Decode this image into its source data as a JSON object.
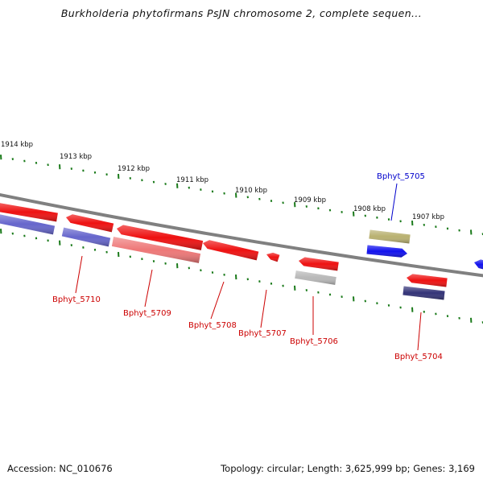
{
  "title": "Burkholderia phytofirmans PsJN chromosome 2, complete sequen...",
  "footer": {
    "accession": "Accession: NC_010676",
    "topology": "Topology: circular; Length: 3,625,999 bp; Genes: 3,169"
  },
  "kbp_labels": [
    "1914 kbp",
    "1913 kbp",
    "1912 kbp",
    "1911 kbp",
    "1910 kbp",
    "1909 kbp",
    "1908 kbp",
    "1907 kbp"
  ],
  "gene_labels": [
    {
      "name": "Bphyt_5710",
      "color": "#cc0000"
    },
    {
      "name": "Bphyt_5709",
      "color": "#cc0000"
    },
    {
      "name": "Bphyt_5708",
      "color": "#cc0000"
    },
    {
      "name": "Bphyt_5707",
      "color": "#cc0000"
    },
    {
      "name": "Bphyt_5706",
      "color": "#cc0000"
    },
    {
      "name": "Bphyt_5705",
      "color": "#0000cc"
    },
    {
      "name": "Bphyt_5704",
      "color": "#cc0000"
    }
  ],
  "colors": {
    "backbone": "#808080",
    "tick": "#1a7a1a",
    "gene_red": "#ee1111",
    "gene_pink": "#ee7777",
    "gene_blue": "#1111ee",
    "gene_purple": "#6666cc",
    "gene_darkpurple": "#333377",
    "gene_khaki": "#b8b070",
    "gene_gray": "#b8b8b8"
  }
}
